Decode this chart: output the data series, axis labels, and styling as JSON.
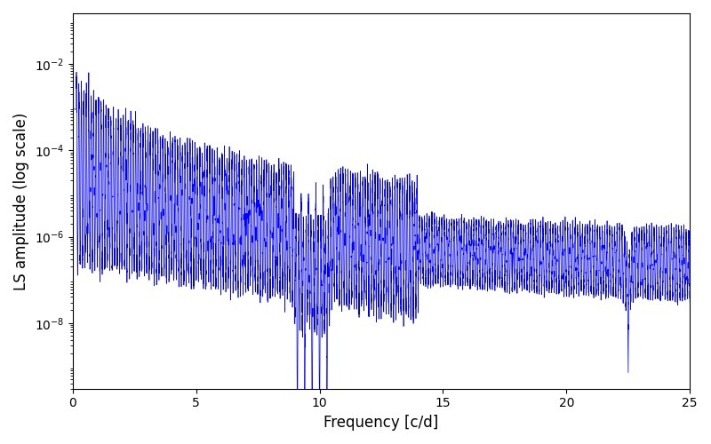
{
  "xlabel": "Frequency [c/d]",
  "ylabel": "LS amplitude (log scale)",
  "xlim": [
    0,
    25
  ],
  "ylim_log": [
    3e-10,
    0.15
  ],
  "line_color": "#0000ff",
  "line_width": 0.5,
  "background_color": "#ffffff",
  "figsize": [
    8.0,
    5.0
  ],
  "dpi": 100,
  "freq_max": 25.0,
  "n_points": 15000,
  "seed": 12345
}
